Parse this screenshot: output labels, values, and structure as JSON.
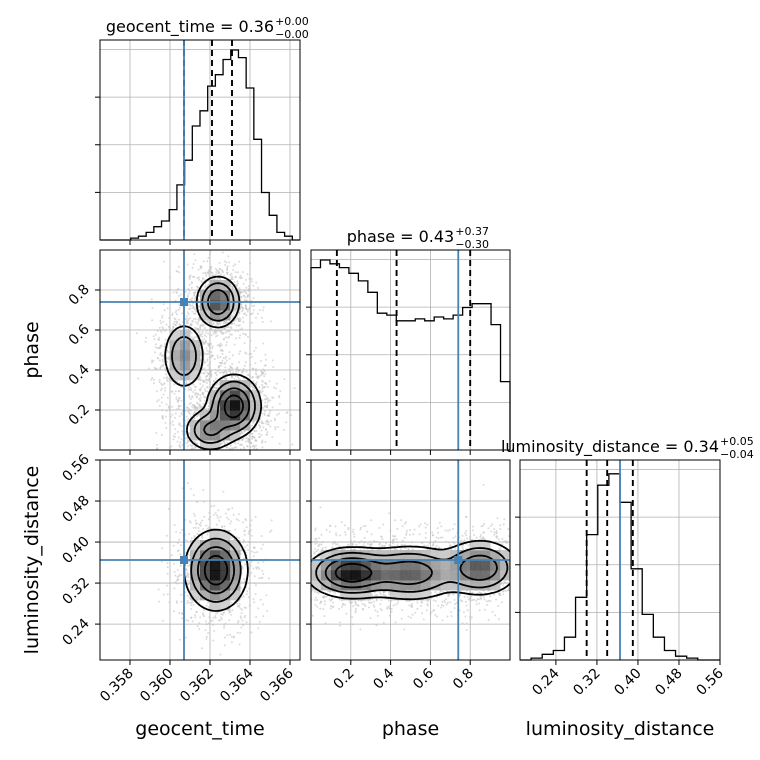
{
  "colors": {
    "truth": "#4682b4",
    "density": "#000000",
    "grid": "#b0b0b0"
  },
  "chart_data": {
    "type": "corner",
    "parameters": [
      "geocent_time",
      "phase",
      "luminosity_distance"
    ],
    "ranges": {
      "geocent_time": [
        0.3565,
        0.3665
      ],
      "phase": [
        0.0,
        1.0
      ],
      "luminosity_distance": [
        0.17,
        0.56
      ]
    },
    "truths": {
      "geocent_time": 0.3607,
      "phase": 0.74,
      "luminosity_distance": 0.365
    },
    "titles": {
      "geocent_time": {
        "name": "geocent_time",
        "median": "0.36",
        "plus": "+0.00",
        "minus": "−0.00"
      },
      "phase": {
        "name": "phase",
        "median": "0.43",
        "plus": "+0.37",
        "minus": "−0.30"
      },
      "luminosity_distance": {
        "name": "luminosity_distance",
        "median": "0.34",
        "plus": "+0.05",
        "minus": "−0.04"
      }
    },
    "quantiles": {
      "geocent_time": [
        0.3607,
        0.3621,
        0.3631
      ],
      "phase": [
        0.13,
        0.43,
        0.8
      ],
      "luminosity_distance": [
        0.3,
        0.34,
        0.39
      ]
    },
    "ticks": {
      "geocent_time": [
        "0.358",
        "0.360",
        "0.362",
        "0.364",
        "0.366"
      ],
      "phase": [
        "0.2",
        "0.4",
        "0.6",
        "0.8"
      ],
      "luminosity_distance": [
        "0.24",
        "0.32",
        "0.40",
        "0.48",
        "0.56"
      ]
    },
    "hist_1d": {
      "geocent_time": [
        0,
        0,
        0,
        0,
        0.01,
        0.02,
        0.04,
        0.07,
        0.1,
        0.16,
        0.29,
        0.42,
        0.6,
        0.68,
        0.81,
        0.87,
        0.95,
        1.0,
        0.96,
        0.8,
        0.53,
        0.25,
        0.13,
        0.04,
        0.02,
        0.0
      ],
      "phase": [
        0.96,
        1.0,
        0.98,
        0.96,
        0.93,
        0.89,
        0.83,
        0.72,
        0.71,
        0.68,
        0.68,
        0.69,
        0.68,
        0.7,
        0.69,
        0.71,
        0.75,
        0.77,
        0.77,
        0.66,
        0.36
      ],
      "luminosity_distance": [
        0,
        0.01,
        0.03,
        0.05,
        0.12,
        0.33,
        0.66,
        0.92,
        0.98,
        0.83,
        0.48,
        0.24,
        0.12,
        0.05,
        0.02,
        0.01,
        0.0,
        0.0
      ]
    },
    "density_2d": {
      "phase_vs_geocent_time": {
        "x_param": "geocent_time",
        "y_param": "phase",
        "blobs": [
          {
            "x": 0.3632,
            "y": 0.22,
            "sx": 0.0006,
            "sy": 0.07,
            "w": 1.0
          },
          {
            "x": 0.3624,
            "y": 0.74,
            "sx": 0.0005,
            "sy": 0.06,
            "w": 0.75
          },
          {
            "x": 0.3607,
            "y": 0.47,
            "sx": 0.0005,
            "sy": 0.08,
            "w": 0.45
          },
          {
            "x": 0.362,
            "y": 0.1,
            "sx": 0.0006,
            "sy": 0.05,
            "w": 0.5
          }
        ]
      },
      "luminosity_distance_vs_geocent_time": {
        "x_param": "geocent_time",
        "y_param": "luminosity_distance",
        "blobs": [
          {
            "x": 0.3623,
            "y": 0.345,
            "sx": 0.0007,
            "sy": 0.035,
            "w": 1.0
          }
        ]
      },
      "luminosity_distance_vs_phase": {
        "x_param": "phase",
        "y_param": "luminosity_distance",
        "blobs": [
          {
            "x": 0.2,
            "y": 0.34,
            "sx": 0.1,
            "sy": 0.022,
            "w": 1.0
          },
          {
            "x": 0.5,
            "y": 0.34,
            "sx": 0.12,
            "sy": 0.025,
            "w": 0.65
          },
          {
            "x": 0.85,
            "y": 0.35,
            "sx": 0.09,
            "sy": 0.025,
            "w": 0.7
          }
        ]
      }
    }
  }
}
